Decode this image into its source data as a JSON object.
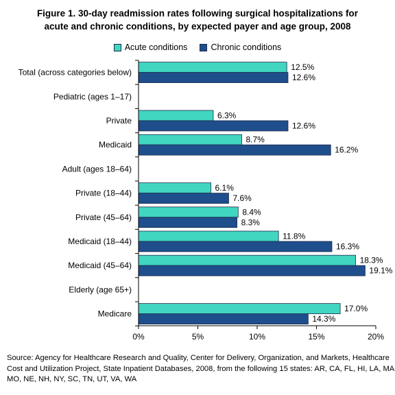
{
  "title_lines": [
    "Figure 1. 30-day readmission rates following surgical hospitalizations for",
    "acute and chronic conditions, by expected payer and age group, 2008"
  ],
  "source_lines": [
    "Source: Agency for Healthcare Research and Quality, Center for Delivery, Organization, and Markets, Healthcare",
    "Cost and Utilization Project, State Inpatient Databases, 2008, from the following 15 states: AR, CA, FL, HI, LA, MA,",
    "MO, NE, NH, NY, SC, TN, UT, VA, WA"
  ],
  "colors": {
    "acute": "#40d6c0",
    "chronic": "#1f4e8c",
    "outline": "#1b2a4a",
    "axis": "#000000"
  },
  "chart_data": {
    "type": "bar",
    "orientation": "horizontal",
    "legend_position": "top-center",
    "grid": false,
    "xlim": [
      0,
      20
    ],
    "x_ticks": [
      0,
      5,
      10,
      15,
      20
    ],
    "x_tick_labels": [
      "0%",
      "5%",
      "10%",
      "15%",
      "20%"
    ],
    "series": [
      {
        "name": "Acute conditions",
        "key": "acute"
      },
      {
        "name": "Chronic conditions",
        "key": "chronic"
      }
    ],
    "categories": [
      {
        "label": "Total (across categories below)",
        "acute": 12.5,
        "chronic": 12.6,
        "acute_label": "12.5%",
        "chronic_label": "12.6%"
      },
      {
        "label": "Pediatric (ages 1–17)",
        "heading": true
      },
      {
        "label": "Private",
        "acute": 6.3,
        "chronic": 12.6,
        "acute_label": "6.3%",
        "chronic_label": "12.6%"
      },
      {
        "label": "Medicaid",
        "acute": 8.7,
        "chronic": 16.2,
        "acute_label": "8.7%",
        "chronic_label": "16.2%"
      },
      {
        "label": "Adult (ages 18–64)",
        "heading": true
      },
      {
        "label": "Private (18–44)",
        "acute": 6.1,
        "chronic": 7.6,
        "acute_label": "6.1%",
        "chronic_label": "7.6%"
      },
      {
        "label": "Private (45–64)",
        "acute": 8.4,
        "chronic": 8.3,
        "acute_label": "8.4%",
        "chronic_label": "8.3%"
      },
      {
        "label": "Medicaid (18–44)",
        "acute": 11.8,
        "chronic": 16.3,
        "acute_label": "11.8%",
        "chronic_label": "16.3%"
      },
      {
        "label": "Medicaid (45–64)",
        "acute": 18.3,
        "chronic": 19.1,
        "acute_label": "18.3%",
        "chronic_label": "19.1%"
      },
      {
        "label": "Elderly (age 65+)",
        "heading": true
      },
      {
        "label": "Medicare",
        "acute": 17.0,
        "chronic": 14.3,
        "acute_label": "17.0%",
        "chronic_label": "14.3%"
      }
    ]
  }
}
